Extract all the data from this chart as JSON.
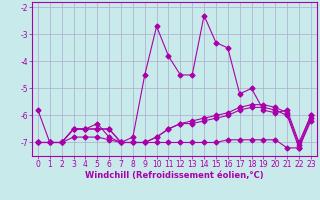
{
  "x": [
    0,
    1,
    2,
    3,
    4,
    5,
    6,
    7,
    8,
    9,
    10,
    11,
    12,
    13,
    14,
    15,
    16,
    17,
    18,
    19,
    20,
    21,
    22,
    23
  ],
  "line1": [
    -5.8,
    -7.0,
    -7.0,
    -6.5,
    -6.5,
    -6.3,
    -6.8,
    -7.0,
    -6.8,
    -4.5,
    -2.7,
    -3.8,
    -4.5,
    -4.5,
    -2.3,
    -3.3,
    -3.5,
    -5.2,
    -5.0,
    -5.8,
    -5.9,
    -5.8,
    -7.0,
    -6.0
  ],
  "line2": [
    -7.0,
    -7.0,
    -7.0,
    -6.5,
    -6.5,
    -6.5,
    -6.5,
    -7.0,
    -7.0,
    -7.0,
    -6.8,
    -6.5,
    -6.3,
    -6.3,
    -6.2,
    -6.1,
    -6.0,
    -5.8,
    -5.7,
    -5.7,
    -5.8,
    -6.0,
    -7.2,
    -6.1
  ],
  "line3": [
    -7.0,
    -7.0,
    -7.0,
    -6.5,
    -6.5,
    -6.5,
    -6.5,
    -7.0,
    -7.0,
    -7.0,
    -6.8,
    -6.5,
    -6.3,
    -6.2,
    -6.1,
    -6.0,
    -5.9,
    -5.7,
    -5.6,
    -5.6,
    -5.7,
    -5.9,
    -7.1,
    -6.0
  ],
  "line4": [
    -7.0,
    -7.0,
    -7.0,
    -6.8,
    -6.8,
    -6.8,
    -6.9,
    -7.0,
    -7.0,
    -7.0,
    -7.0,
    -7.0,
    -7.0,
    -7.0,
    -7.0,
    -7.0,
    -6.9,
    -6.9,
    -6.9,
    -6.9,
    -6.9,
    -7.2,
    -7.2,
    -6.2
  ],
  "bg_color": "#c8eaea",
  "line_color": "#aa00aa",
  "grid_color": "#aaaacc",
  "xlabel": "Windchill (Refroidissement éolien,°C)",
  "ylim": [
    -7.5,
    -1.8
  ],
  "xlim": [
    -0.5,
    23.5
  ],
  "yticks": [
    -7,
    -6,
    -5,
    -4,
    -3,
    -2
  ],
  "xticks": [
    0,
    1,
    2,
    3,
    4,
    5,
    6,
    7,
    8,
    9,
    10,
    11,
    12,
    13,
    14,
    15,
    16,
    17,
    18,
    19,
    20,
    21,
    22,
    23
  ],
  "title_fontsize": 6,
  "tick_fontsize": 5.5,
  "xlabel_fontsize": 6
}
